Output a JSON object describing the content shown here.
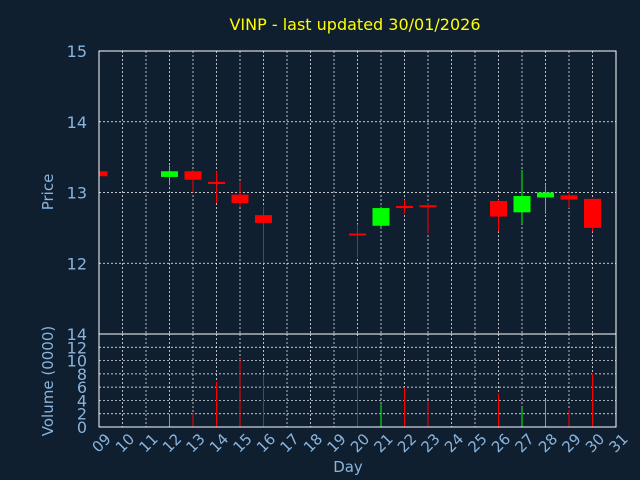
{
  "chart_data": [
    {
      "type": "candlestick",
      "title": "VINP - last updated 30/01/2026",
      "ylabel": "Price",
      "ylim": [
        11,
        15
      ],
      "yticks": [
        "12",
        "13",
        "14",
        "15"
      ],
      "grid": true,
      "colors": {
        "up": "#00ff00",
        "down": "#ff0000",
        "title": "#ffff00",
        "axis_text": "#8ab4dc",
        "grid": "#ffffff"
      },
      "x": [
        "09",
        "10",
        "11",
        "12",
        "13",
        "14",
        "15",
        "16",
        "17",
        "18",
        "19",
        "20",
        "21",
        "22",
        "23",
        "24",
        "25",
        "26",
        "27",
        "28",
        "29",
        "30",
        "31"
      ],
      "candles": [
        {
          "day": "09",
          "open": 13.3,
          "high": 13.3,
          "low": 13.23,
          "close": 13.23
        },
        {
          "day": "12",
          "open": 13.22,
          "high": 13.38,
          "low": 13.1,
          "close": 13.3
        },
        {
          "day": "13",
          "open": 13.3,
          "high": 13.32,
          "low": 13.0,
          "close": 13.18
        },
        {
          "day": "14",
          "open": 13.15,
          "high": 13.3,
          "low": 12.85,
          "close": 13.12
        },
        {
          "day": "15",
          "open": 12.97,
          "high": 13.15,
          "low": 12.8,
          "close": 12.85
        },
        {
          "day": "16",
          "open": 12.68,
          "high": 12.8,
          "low": 12.0,
          "close": 12.57
        },
        {
          "day": "20",
          "open": 12.42,
          "high": 12.55,
          "low": 12.08,
          "close": 12.4
        },
        {
          "day": "21",
          "open": 12.53,
          "high": 12.8,
          "low": 12.5,
          "close": 12.78
        },
        {
          "day": "22",
          "open": 12.81,
          "high": 12.9,
          "low": 12.7,
          "close": 12.78
        },
        {
          "day": "23",
          "open": 12.82,
          "high": 12.85,
          "low": 12.42,
          "close": 12.8
        },
        {
          "day": "26",
          "open": 12.88,
          "high": 12.9,
          "low": 12.45,
          "close": 12.66
        },
        {
          "day": "27",
          "open": 12.72,
          "high": 13.32,
          "low": 12.55,
          "close": 12.95
        },
        {
          "day": "28",
          "open": 12.93,
          "high": 13.1,
          "low": 12.7,
          "close": 13.0
        },
        {
          "day": "29",
          "open": 12.96,
          "high": 13.02,
          "low": 12.78,
          "close": 12.9
        },
        {
          "day": "30",
          "open": 12.91,
          "high": 12.91,
          "low": 12.45,
          "close": 12.5
        }
      ]
    },
    {
      "type": "bar",
      "ylabel": "Volume (0000)",
      "xlabel": "Day",
      "ylim": [
        0,
        14
      ],
      "yticks": [
        "0",
        "2",
        "4",
        "6",
        "8",
        "10",
        "12",
        "14"
      ],
      "grid": true,
      "x": [
        "09",
        "10",
        "11",
        "12",
        "13",
        "14",
        "15",
        "16",
        "17",
        "18",
        "19",
        "20",
        "21",
        "22",
        "23",
        "24",
        "25",
        "26",
        "27",
        "28",
        "29",
        "30",
        "31"
      ],
      "bars": [
        {
          "day": "09",
          "value": 0.3,
          "color": "#ff0000"
        },
        {
          "day": "12",
          "value": 1.9,
          "color": "#00ff00"
        },
        {
          "day": "13",
          "value": 2.1,
          "color": "#ff0000"
        },
        {
          "day": "14",
          "value": 6.8,
          "color": "#ff0000"
        },
        {
          "day": "15",
          "value": 10.3,
          "color": "#ff0000"
        },
        {
          "day": "16",
          "value": 7.9,
          "color": "#ff0000"
        },
        {
          "day": "20",
          "value": 13.5,
          "color": "#ff0000"
        },
        {
          "day": "21",
          "value": 3.4,
          "color": "#00ff00"
        },
        {
          "day": "22",
          "value": 6.0,
          "color": "#ff0000"
        },
        {
          "day": "23",
          "value": 3.8,
          "color": "#ff0000"
        },
        {
          "day": "26",
          "value": 5.0,
          "color": "#ff0000"
        },
        {
          "day": "27",
          "value": 3.0,
          "color": "#00ff00"
        },
        {
          "day": "28",
          "value": 4.1,
          "color": "#00ff00"
        },
        {
          "day": "29",
          "value": 2.6,
          "color": "#ff0000"
        },
        {
          "day": "30",
          "value": 8.1,
          "color": "#ff0000"
        }
      ]
    }
  ]
}
